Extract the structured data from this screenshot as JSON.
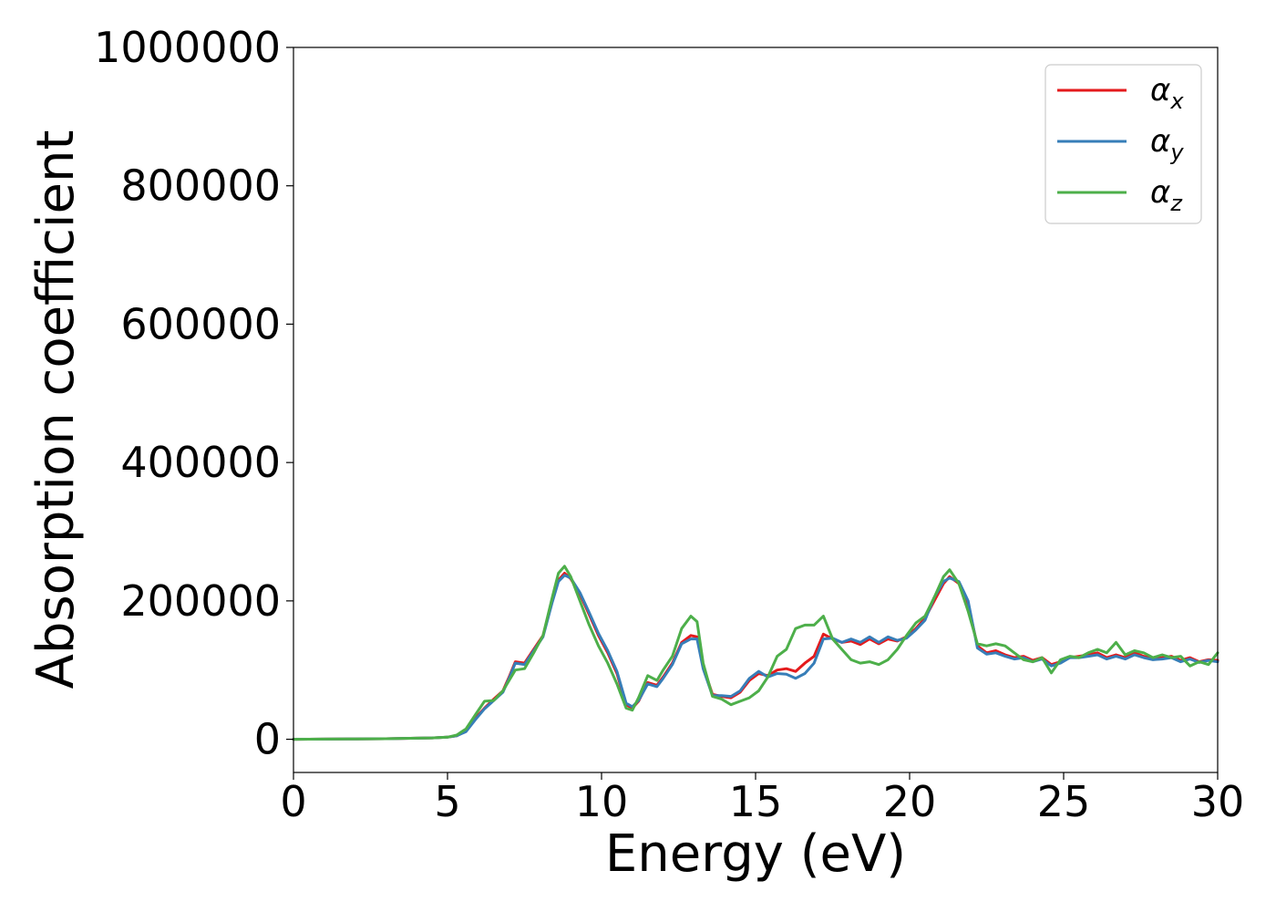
{
  "chart_data": {
    "type": "line",
    "xlabel": "Energy (eV)",
    "ylabel": "Absorption coefficient",
    "xlim": [
      0,
      30
    ],
    "ylim": [
      -48000,
      1000000
    ],
    "xticks": [
      0,
      5,
      10,
      15,
      20,
      25,
      30
    ],
    "yticks": [
      0,
      200000,
      400000,
      600000,
      800000,
      1000000
    ],
    "grid": false,
    "legend_position": "top-right",
    "series": [
      {
        "name": "α",
        "subscript": "x",
        "color": "#e41a1c",
        "x": [
          0,
          1,
          2,
          3,
          4,
          4.5,
          5,
          5.3,
          5.6,
          5.9,
          6.2,
          6.5,
          6.8,
          7.0,
          7.2,
          7.5,
          7.8,
          8.1,
          8.4,
          8.6,
          8.8,
          9.0,
          9.3,
          9.6,
          9.9,
          10.2,
          10.5,
          10.8,
          11.0,
          11.2,
          11.5,
          11.8,
          12.0,
          12.3,
          12.6,
          12.9,
          13.1,
          13.3,
          13.6,
          13.9,
          14.2,
          14.5,
          14.8,
          15.1,
          15.4,
          15.7,
          16.0,
          16.3,
          16.6,
          16.9,
          17.2,
          17.5,
          17.8,
          18.1,
          18.4,
          18.7,
          19.0,
          19.3,
          19.6,
          19.9,
          20.2,
          20.5,
          20.8,
          21.1,
          21.3,
          21.6,
          21.9,
          22.2,
          22.5,
          22.8,
          23.1,
          23.4,
          23.7,
          24.0,
          24.3,
          24.6,
          24.9,
          25.2,
          25.5,
          25.8,
          26.1,
          26.4,
          26.7,
          27.0,
          27.3,
          27.6,
          27.9,
          28.2,
          28.5,
          28.8,
          29.1,
          29.4,
          29.7,
          30
        ],
        "y": [
          0,
          200,
          500,
          800,
          1500,
          2000,
          3000,
          5000,
          12000,
          30000,
          45000,
          58000,
          70000,
          90000,
          112000,
          110000,
          130000,
          150000,
          200000,
          230000,
          240000,
          232000,
          210000,
          180000,
          150000,
          125000,
          95000,
          50000,
          45000,
          55000,
          82000,
          78000,
          90000,
          110000,
          140000,
          150000,
          148000,
          105000,
          65000,
          62000,
          60000,
          68000,
          85000,
          95000,
          92000,
          100000,
          102000,
          98000,
          110000,
          120000,
          152000,
          145000,
          140000,
          142000,
          137000,
          145000,
          138000,
          145000,
          142000,
          148000,
          160000,
          175000,
          200000,
          225000,
          235000,
          225000,
          195000,
          135000,
          125000,
          128000,
          122000,
          118000,
          120000,
          114000,
          118000,
          108000,
          112000,
          118000,
          120000,
          122000,
          125000,
          118000,
          122000,
          118000,
          125000,
          120000,
          116000,
          118000,
          120000,
          114000,
          118000,
          112000,
          115000,
          114000
        ]
      },
      {
        "name": "α",
        "subscript": "y",
        "color": "#377eb8",
        "x": [
          0,
          1,
          2,
          3,
          4,
          4.5,
          5,
          5.3,
          5.6,
          5.9,
          6.2,
          6.5,
          6.8,
          7.0,
          7.2,
          7.5,
          7.8,
          8.1,
          8.4,
          8.6,
          8.8,
          9.0,
          9.3,
          9.6,
          9.9,
          10.2,
          10.5,
          10.8,
          11.0,
          11.2,
          11.5,
          11.8,
          12.0,
          12.3,
          12.6,
          12.9,
          13.1,
          13.3,
          13.6,
          13.9,
          14.2,
          14.5,
          14.8,
          15.1,
          15.4,
          15.7,
          16.0,
          16.3,
          16.6,
          16.9,
          17.2,
          17.5,
          17.8,
          18.1,
          18.4,
          18.7,
          19.0,
          19.3,
          19.6,
          19.9,
          20.2,
          20.5,
          20.8,
          21.1,
          21.3,
          21.6,
          21.9,
          22.2,
          22.5,
          22.8,
          23.1,
          23.4,
          23.7,
          24.0,
          24.3,
          24.6,
          24.9,
          25.2,
          25.5,
          25.8,
          26.1,
          26.4,
          26.7,
          27.0,
          27.3,
          27.6,
          27.9,
          28.2,
          28.5,
          28.8,
          29.1,
          29.4,
          29.7,
          30
        ],
        "y": [
          0,
          200,
          500,
          800,
          1500,
          2000,
          3000,
          5000,
          11000,
          28000,
          44000,
          56000,
          68000,
          88000,
          110000,
          108000,
          128000,
          148000,
          198000,
          228000,
          237000,
          233000,
          212000,
          183000,
          153000,
          128000,
          98000,
          52000,
          47000,
          56000,
          80000,
          76000,
          88000,
          108000,
          138000,
          145000,
          145000,
          102000,
          63000,
          63000,
          62000,
          70000,
          88000,
          98000,
          90000,
          95000,
          94000,
          88000,
          95000,
          110000,
          145000,
          146000,
          140000,
          145000,
          140000,
          148000,
          140000,
          148000,
          143000,
          146000,
          158000,
          172000,
          205000,
          228000,
          233000,
          228000,
          200000,
          132000,
          123000,
          125000,
          120000,
          116000,
          118000,
          112000,
          116000,
          106000,
          110000,
          118000,
          118000,
          120000,
          122000,
          116000,
          120000,
          116000,
          122000,
          118000,
          115000,
          116000,
          118000,
          112000,
          116000,
          111000,
          114000,
          112000
        ]
      },
      {
        "name": "α",
        "subscript": "z",
        "color": "#4daf4a",
        "x": [
          0,
          1,
          2,
          3,
          4,
          4.5,
          5,
          5.3,
          5.6,
          5.9,
          6.2,
          6.5,
          6.8,
          7.0,
          7.2,
          7.5,
          7.8,
          8.1,
          8.4,
          8.6,
          8.8,
          9.0,
          9.3,
          9.6,
          9.9,
          10.2,
          10.5,
          10.8,
          11.0,
          11.2,
          11.5,
          11.8,
          12.0,
          12.3,
          12.6,
          12.9,
          13.1,
          13.3,
          13.6,
          13.9,
          14.2,
          14.5,
          14.8,
          15.1,
          15.4,
          15.7,
          16.0,
          16.3,
          16.6,
          16.9,
          17.2,
          17.5,
          17.8,
          18.1,
          18.4,
          18.7,
          19.0,
          19.3,
          19.6,
          19.9,
          20.2,
          20.5,
          20.8,
          21.1,
          21.3,
          21.6,
          21.9,
          22.2,
          22.5,
          22.8,
          23.1,
          23.4,
          23.7,
          24.0,
          24.3,
          24.6,
          24.9,
          25.2,
          25.5,
          25.8,
          26.1,
          26.4,
          26.7,
          27.0,
          27.3,
          27.6,
          27.9,
          28.2,
          28.5,
          28.8,
          29.1,
          29.4,
          29.7,
          30
        ],
        "y": [
          0,
          200,
          500,
          800,
          1500,
          2000,
          3000,
          6000,
          15000,
          35000,
          55000,
          56000,
          70000,
          85000,
          100000,
          102000,
          125000,
          150000,
          205000,
          240000,
          250000,
          235000,
          200000,
          165000,
          135000,
          110000,
          80000,
          45000,
          42000,
          60000,
          92000,
          85000,
          100000,
          120000,
          160000,
          178000,
          170000,
          110000,
          62000,
          58000,
          50000,
          55000,
          60000,
          70000,
          90000,
          120000,
          130000,
          160000,
          165000,
          165000,
          178000,
          145000,
          130000,
          115000,
          110000,
          112000,
          108000,
          115000,
          130000,
          150000,
          168000,
          178000,
          205000,
          235000,
          245000,
          225000,
          185000,
          138000,
          135000,
          138000,
          135000,
          125000,
          115000,
          112000,
          118000,
          96000,
          115000,
          120000,
          118000,
          125000,
          130000,
          125000,
          140000,
          122000,
          128000,
          125000,
          118000,
          122000,
          118000,
          120000,
          106000,
          112000,
          108000,
          125000
        ]
      }
    ]
  }
}
